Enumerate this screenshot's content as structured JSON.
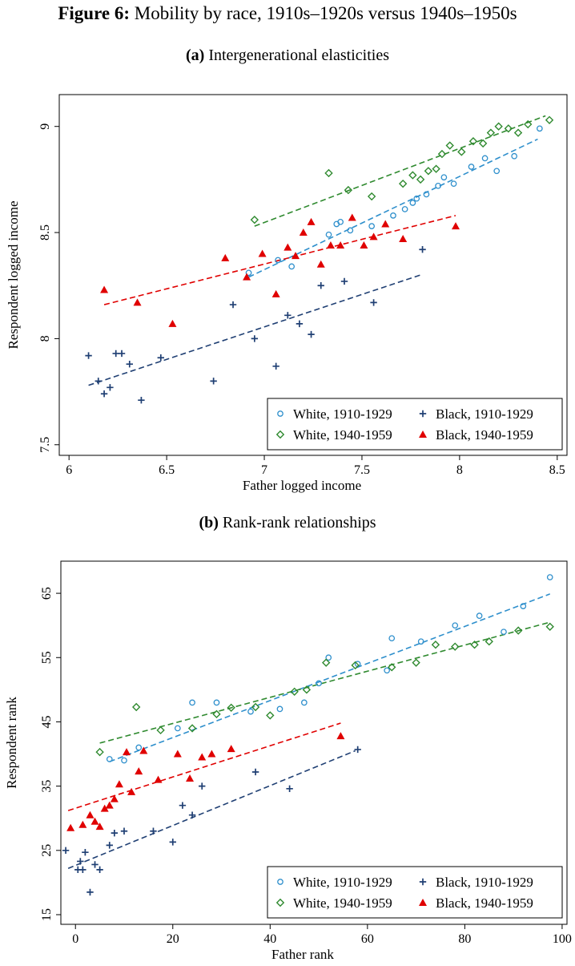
{
  "figure": {
    "label": "Figure 6:",
    "title": "Mobility by race, 1910s–1920s versus 1940s–1950s"
  },
  "colors": {
    "white_1910": "#2e8fcc",
    "black_1910": "#1f3f73",
    "white_1940": "#2f8a2f",
    "black_1940": "#e00000"
  },
  "chart_data": [
    {
      "type": "scatter",
      "panel_label": "(a)",
      "title": "Intergenerational elasticities",
      "xlabel": "Father logged income",
      "ylabel": "Respondent logged income",
      "xlim": [
        5.95,
        8.55
      ],
      "ylim": [
        7.45,
        9.15
      ],
      "xticks": [
        6,
        6.5,
        7,
        7.5,
        8,
        8.5
      ],
      "xtick_labels": [
        "6",
        "6.5",
        "7",
        "7.5",
        "8",
        "8.5"
      ],
      "yticks": [
        7.5,
        8,
        8.5,
        9
      ],
      "ytick_labels": [
        "7.5",
        "8",
        "8.5",
        "9"
      ],
      "legend_position": "bottom-right",
      "series": [
        {
          "name": "White, 1910-1929",
          "key": "white_1910",
          "marker": "circle",
          "fit": [
            [
              6.92,
              8.29
            ],
            [
              8.4,
              8.94
            ]
          ],
          "points": [
            [
              6.92,
              8.31
            ],
            [
              7.07,
              8.37
            ],
            [
              7.14,
              8.34
            ],
            [
              7.33,
              8.49
            ],
            [
              7.37,
              8.54
            ],
            [
              7.39,
              8.55
            ],
            [
              7.44,
              8.51
            ],
            [
              7.55,
              8.53
            ],
            [
              7.66,
              8.58
            ],
            [
              7.72,
              8.61
            ],
            [
              7.76,
              8.64
            ],
            [
              7.78,
              8.66
            ],
            [
              7.83,
              8.68
            ],
            [
              7.89,
              8.72
            ],
            [
              7.92,
              8.76
            ],
            [
              7.97,
              8.73
            ],
            [
              8.06,
              8.81
            ],
            [
              8.13,
              8.85
            ],
            [
              8.19,
              8.79
            ],
            [
              8.28,
              8.86
            ],
            [
              8.41,
              8.99
            ]
          ]
        },
        {
          "name": "White, 1940-1959",
          "key": "white_1940",
          "marker": "diamond",
          "fit": [
            [
              6.95,
              8.53
            ],
            [
              8.44,
              9.05
            ]
          ],
          "points": [
            [
              6.95,
              8.56
            ],
            [
              7.33,
              8.78
            ],
            [
              7.43,
              8.7
            ],
            [
              7.55,
              8.67
            ],
            [
              7.71,
              8.73
            ],
            [
              7.76,
              8.77
            ],
            [
              7.8,
              8.75
            ],
            [
              7.84,
              8.79
            ],
            [
              7.88,
              8.8
            ],
            [
              7.91,
              8.87
            ],
            [
              7.95,
              8.91
            ],
            [
              8.01,
              8.88
            ],
            [
              8.07,
              8.93
            ],
            [
              8.12,
              8.92
            ],
            [
              8.16,
              8.97
            ],
            [
              8.2,
              9.0
            ],
            [
              8.25,
              8.99
            ],
            [
              8.3,
              8.97
            ],
            [
              8.35,
              9.01
            ],
            [
              8.46,
              9.03
            ]
          ]
        },
        {
          "name": "Black, 1910-1929",
          "key": "black_1910",
          "marker": "plus",
          "fit": [
            [
              6.1,
              7.78
            ],
            [
              7.8,
              8.3
            ]
          ],
          "points": [
            [
              6.1,
              7.92
            ],
            [
              6.15,
              7.8
            ],
            [
              6.18,
              7.74
            ],
            [
              6.21,
              7.77
            ],
            [
              6.24,
              7.93
            ],
            [
              6.27,
              7.93
            ],
            [
              6.31,
              7.88
            ],
            [
              6.37,
              7.71
            ],
            [
              6.47,
              7.91
            ],
            [
              6.74,
              7.8
            ],
            [
              6.84,
              8.16
            ],
            [
              6.95,
              8.0
            ],
            [
              7.06,
              7.87
            ],
            [
              7.12,
              8.11
            ],
            [
              7.18,
              8.07
            ],
            [
              7.24,
              8.02
            ],
            [
              7.29,
              8.25
            ],
            [
              7.41,
              8.27
            ],
            [
              7.56,
              8.17
            ],
            [
              7.81,
              8.42
            ]
          ]
        },
        {
          "name": "Black, 1940-1959",
          "key": "black_1940",
          "marker": "triangle",
          "fit": [
            [
              6.18,
              8.16
            ],
            [
              7.98,
              8.58
            ]
          ],
          "points": [
            [
              6.18,
              8.23
            ],
            [
              6.35,
              8.17
            ],
            [
              6.53,
              8.07
            ],
            [
              6.8,
              8.38
            ],
            [
              6.91,
              8.29
            ],
            [
              6.99,
              8.4
            ],
            [
              7.06,
              8.21
            ],
            [
              7.12,
              8.43
            ],
            [
              7.16,
              8.39
            ],
            [
              7.2,
              8.5
            ],
            [
              7.24,
              8.55
            ],
            [
              7.29,
              8.35
            ],
            [
              7.34,
              8.44
            ],
            [
              7.39,
              8.44
            ],
            [
              7.45,
              8.57
            ],
            [
              7.51,
              8.44
            ],
            [
              7.56,
              8.48
            ],
            [
              7.62,
              8.54
            ],
            [
              7.71,
              8.47
            ],
            [
              7.98,
              8.53
            ]
          ]
        }
      ]
    },
    {
      "type": "scatter",
      "panel_label": "(b)",
      "title": "Rank-rank relationships",
      "xlabel": "Father rank",
      "ylabel": "Respondent rank",
      "xlim": [
        -3,
        101
      ],
      "ylim": [
        13.5,
        70
      ],
      "xticks": [
        0,
        20,
        40,
        60,
        80,
        100
      ],
      "xtick_labels": [
        "0",
        "20",
        "40",
        "60",
        "80",
        "100"
      ],
      "yticks": [
        15,
        25,
        35,
        45,
        55,
        65
      ],
      "ytick_labels": [
        "15",
        "25",
        "35",
        "45",
        "55",
        "65"
      ],
      "legend_position": "bottom-right",
      "series": [
        {
          "name": "White, 1910-1929",
          "key": "white_1910",
          "marker": "circle",
          "fit": [
            [
              7,
              38.8
            ],
            [
              97.5,
              64.9
            ]
          ],
          "points": [
            [
              7,
              39.2
            ],
            [
              10,
              39
            ],
            [
              13,
              41
            ],
            [
              21,
              44
            ],
            [
              24,
              48
            ],
            [
              29,
              48
            ],
            [
              36,
              46.6
            ],
            [
              42,
              47
            ],
            [
              47,
              48
            ],
            [
              50,
              51
            ],
            [
              52,
              55
            ],
            [
              58,
              54
            ],
            [
              64,
              53
            ],
            [
              65,
              58
            ],
            [
              71,
              57.5
            ],
            [
              78,
              60
            ],
            [
              83,
              61.5
            ],
            [
              88,
              59
            ],
            [
              92,
              63
            ],
            [
              97.5,
              67.5
            ]
          ]
        },
        {
          "name": "White, 1940-1959",
          "key": "white_1940",
          "marker": "diamond",
          "fit": [
            [
              5,
              41.7
            ],
            [
              97.5,
              60.5
            ]
          ],
          "points": [
            [
              5,
              40.3
            ],
            [
              12.5,
              47.3
            ],
            [
              17.5,
              43.7
            ],
            [
              24,
              44
            ],
            [
              29,
              46.2
            ],
            [
              32,
              47.2
            ],
            [
              37,
              47.3
            ],
            [
              40,
              46
            ],
            [
              45,
              49.7
            ],
            [
              47.5,
              50
            ],
            [
              51.5,
              54.2
            ],
            [
              57.5,
              53.8
            ],
            [
              65,
              53.5
            ],
            [
              70,
              54.2
            ],
            [
              74,
              57
            ],
            [
              78,
              56.7
            ],
            [
              82,
              57
            ],
            [
              85,
              57.5
            ],
            [
              91,
              59.2
            ],
            [
              97.5,
              59.8
            ]
          ]
        },
        {
          "name": "Black, 1910-1929",
          "key": "black_1910",
          "marker": "plus",
          "fit": [
            [
              -1.5,
              22.2
            ],
            [
              57.5,
              40.5
            ]
          ],
          "points": [
            [
              -2,
              25
            ],
            [
              0.5,
              22
            ],
            [
              1,
              23.3
            ],
            [
              1.5,
              22
            ],
            [
              2,
              24.7
            ],
            [
              3,
              18.5
            ],
            [
              4,
              22.8
            ],
            [
              5,
              22
            ],
            [
              7,
              25.8
            ],
            [
              8,
              27.7
            ],
            [
              10,
              28
            ],
            [
              16,
              28
            ],
            [
              20,
              26.3
            ],
            [
              22,
              32
            ],
            [
              24,
              30.5
            ],
            [
              26,
              35
            ],
            [
              37,
              37.2
            ],
            [
              44,
              34.6
            ],
            [
              58,
              40.7
            ]
          ]
        },
        {
          "name": "Black, 1940-1959",
          "key": "black_1940",
          "marker": "triangle",
          "fit": [
            [
              -1.5,
              31.2
            ],
            [
              54.5,
              44.8
            ]
          ],
          "points": [
            [
              -1,
              28.5
            ],
            [
              1.5,
              29
            ],
            [
              3,
              30.5
            ],
            [
              4,
              29.5
            ],
            [
              5,
              28.7
            ],
            [
              6,
              31.5
            ],
            [
              7,
              32
            ],
            [
              8,
              33
            ],
            [
              9,
              35.3
            ],
            [
              10.5,
              40.3
            ],
            [
              11.5,
              34.1
            ],
            [
              13,
              37.3
            ],
            [
              14,
              40.5
            ],
            [
              17,
              36
            ],
            [
              21,
              40
            ],
            [
              23.5,
              36.2
            ],
            [
              26,
              39.5
            ],
            [
              28,
              40
            ],
            [
              32,
              40.8
            ],
            [
              54.5,
              42.8
            ]
          ]
        }
      ]
    }
  ]
}
